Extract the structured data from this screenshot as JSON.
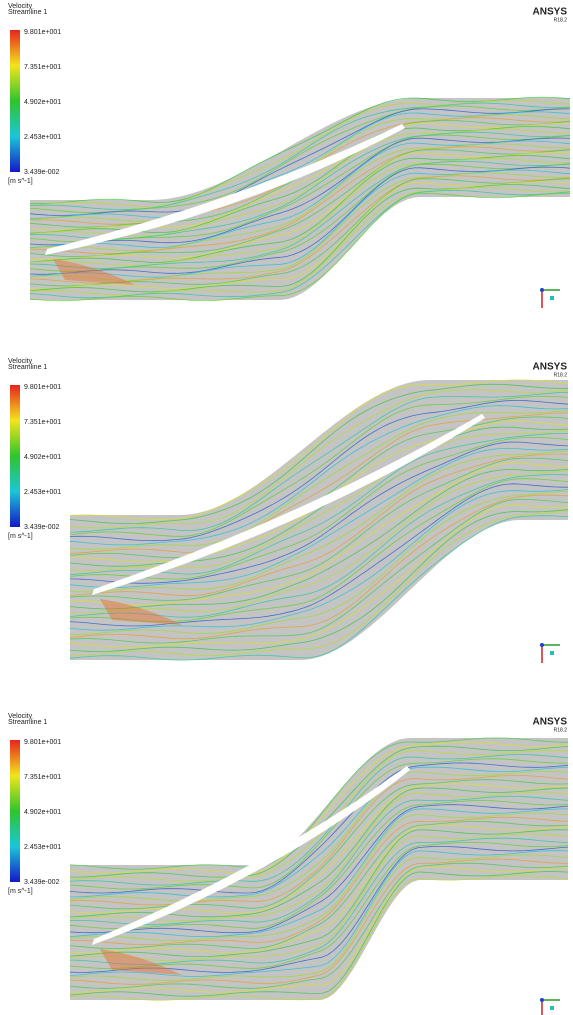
{
  "panels": [
    {
      "legend_title": "Velocity",
      "legend_subtitle": "Streamline 1",
      "scale": [
        "9.801e+001",
        "7.351e+001",
        "4.902e+001",
        "2.453e+001",
        "3.439e-002"
      ],
      "unit": "[m s^-1]",
      "brand": "ANSYS",
      "version": "R18.2"
    },
    {
      "legend_title": "Velocity",
      "legend_subtitle": "Streamline 1",
      "scale": [
        "9.801e+001",
        "7.351e+001",
        "4.902e+001",
        "2.453e+001",
        "3.439e-002"
      ],
      "unit": "[m s^-1]",
      "brand": "ANSYS",
      "version": "R18.2"
    },
    {
      "legend_title": "Velocity",
      "legend_subtitle": "Streamline 1",
      "scale": [
        "9.801e+001",
        "7.351e+001",
        "4.902e+001",
        "2.453e+001",
        "3.439e-002"
      ],
      "unit": "[m s^-1]",
      "brand": "ANSYS",
      "version": "R18.2"
    }
  ]
}
